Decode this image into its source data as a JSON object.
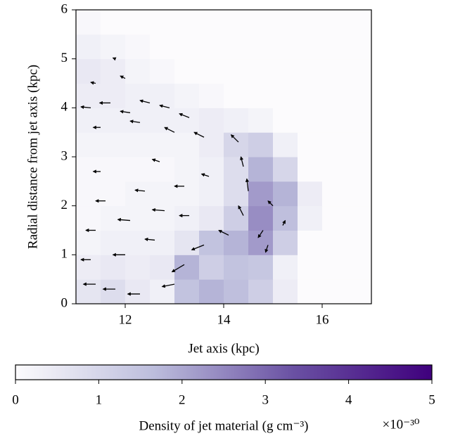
{
  "chart_data": {
    "type": "heatmap",
    "x_label": "Jet axis (kpc)",
    "y_label": "Radial distance from jet axis (kpc)",
    "colorbar_label": "Density of jet material (g cm⁻³)",
    "colorbar_multiplier": "×10⁻³⁰",
    "xlim": [
      11,
      17
    ],
    "xticks": [
      12,
      14,
      16
    ],
    "ylim": [
      0,
      6
    ],
    "yticks": [
      0,
      1,
      2,
      3,
      4,
      5,
      6
    ],
    "clim": [
      0,
      5
    ],
    "cticks": [
      0,
      1,
      2,
      3,
      4,
      5
    ],
    "colors": [
      "#fcfbfd",
      "#bcbddc",
      "#6a51a3",
      "#3f007d"
    ],
    "x": [
      11.25,
      11.75,
      12.25,
      12.75,
      13.25,
      13.75,
      14.25,
      14.75,
      15.25,
      15.75,
      16.25,
      16.75
    ],
    "y": [
      0.25,
      0.75,
      1.25,
      1.75,
      2.25,
      2.75,
      3.25,
      3.75,
      4.25,
      4.75,
      5.25,
      5.75
    ],
    "z": [
      [
        0.6,
        0.8,
        0.5,
        0.3,
        1.5,
        1.8,
        1.6,
        1.2,
        0.4,
        0,
        0,
        0
      ],
      [
        0.4,
        0.5,
        0.4,
        0.5,
        1.8,
        1.2,
        1.5,
        1.4,
        0.3,
        0,
        0,
        0
      ],
      [
        0.2,
        0.3,
        0.3,
        0.3,
        0.6,
        1.5,
        1.8,
        2.2,
        1.2,
        0,
        0,
        0
      ],
      [
        0.1,
        0.2,
        0.2,
        0.2,
        0.3,
        0.5,
        1.2,
        2.4,
        1.6,
        0.3,
        0,
        0
      ],
      [
        0.1,
        0.1,
        0.2,
        0.2,
        0.2,
        0.3,
        0.8,
        2.2,
        1.8,
        0.4,
        0,
        0
      ],
      [
        0.1,
        0.1,
        0.1,
        0.1,
        0.2,
        0.3,
        0.8,
        1.8,
        1.0,
        0,
        0,
        0
      ],
      [
        0.2,
        0.2,
        0.2,
        0.2,
        0.2,
        0.4,
        1.0,
        1.2,
        0.3,
        0,
        0,
        0
      ],
      [
        0.3,
        0.3,
        0.3,
        0.3,
        0.3,
        0.4,
        0.3,
        0.2,
        0,
        0,
        0,
        0
      ],
      [
        0.4,
        0.4,
        0.3,
        0.3,
        0.2,
        0.1,
        0,
        0,
        0,
        0,
        0,
        0
      ],
      [
        0.5,
        0.4,
        0.2,
        0.1,
        0,
        0,
        0,
        0,
        0,
        0,
        0,
        0
      ],
      [
        0.3,
        0.2,
        0.1,
        0,
        0,
        0,
        0,
        0,
        0,
        0,
        0,
        0
      ],
      [
        0.1,
        0,
        0,
        0,
        0,
        0,
        0,
        0,
        0,
        0,
        0,
        0
      ]
    ],
    "vectors": {
      "x": [
        11.3,
        11.7,
        12.1,
        12.5,
        12.9,
        13.3,
        11.5,
        12.3,
        13.0,
        13.6,
        11.4,
        12.0,
        11.8,
        14.3,
        14.4,
        14.5,
        14.4,
        14.1,
        13.6,
        13.2,
        13.0,
        11.4,
        11.8,
        12.3,
        11.3,
        12.0,
        12.6,
        11.4,
        12.1,
        12.8,
        13.3,
        11.6,
        12.4,
        13.2,
        11.5,
        12.7,
        13.7,
        14.8,
        15.0,
        14.9,
        15.2
      ],
      "y": [
        4.0,
        4.1,
        3.9,
        4.1,
        4.0,
        3.8,
        3.6,
        3.7,
        3.5,
        3.4,
        4.5,
        4.6,
        5.0,
        3.3,
        2.8,
        2.3,
        1.8,
        1.4,
        1.2,
        0.8,
        0.4,
        0.4,
        0.3,
        0.2,
        0.9,
        1.0,
        1.3,
        1.5,
        1.7,
        1.9,
        1.8,
        2.1,
        2.3,
        2.4,
        2.7,
        2.9,
        2.6,
        1.5,
        2.0,
        1.2,
        1.6
      ],
      "u": [
        -0.2,
        -0.22,
        -0.2,
        -0.2,
        -0.2,
        -0.2,
        -0.15,
        -0.2,
        -0.2,
        -0.2,
        -0.1,
        -0.1,
        -0.05,
        -0.15,
        -0.05,
        -0.03,
        -0.1,
        -0.2,
        -0.25,
        -0.25,
        -0.25,
        -0.25,
        -0.25,
        -0.25,
        -0.2,
        -0.25,
        -0.2,
        -0.2,
        -0.25,
        -0.25,
        -0.2,
        -0.2,
        -0.2,
        -0.2,
        -0.15,
        -0.15,
        -0.15,
        -0.1,
        -0.1,
        -0.05,
        0.05
      ],
      "v": [
        0.02,
        0,
        0.03,
        0.05,
        0.05,
        0.08,
        0,
        0.03,
        0.1,
        0.1,
        0.02,
        0.05,
        0.02,
        0.15,
        0.2,
        0.25,
        0.2,
        0.1,
        -0.1,
        -0.15,
        -0.05,
        0,
        0,
        0,
        0,
        0,
        0.02,
        0,
        0.02,
        0.02,
        0,
        0,
        0.02,
        0,
        0,
        0.05,
        0.05,
        -0.15,
        0.1,
        -0.15,
        0.1
      ]
    }
  }
}
